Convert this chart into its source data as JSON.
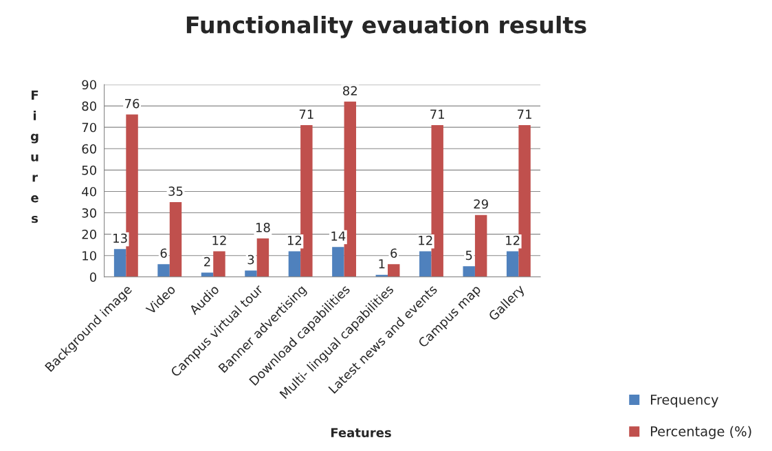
{
  "chart_data": {
    "type": "bar",
    "title": "Functionality evauation results",
    "xlabel": "Features",
    "ylabel": "Figures",
    "categories": [
      "Background image",
      "Video",
      "Audio",
      "Campus virtual tour",
      "Banner advertising",
      "Download capabilities",
      "Multi- lingual capabilities",
      "Latest news and events",
      "Campus map",
      "Gallery"
    ],
    "series": [
      {
        "name": "Frequency",
        "color": "#4f81bd",
        "values": [
          13,
          6,
          2,
          3,
          12,
          14,
          1,
          12,
          5,
          12
        ]
      },
      {
        "name": "Percentage (%)",
        "color": "#c0504d",
        "values": [
          76,
          35,
          12,
          18,
          71,
          82,
          6,
          71,
          29,
          71
        ]
      }
    ],
    "ylim": [
      0,
      90
    ],
    "yticks": [
      0,
      10,
      20,
      30,
      40,
      50,
      60,
      70,
      80,
      90
    ],
    "grid": "y",
    "legend": "bottom right",
    "data_labels": true
  }
}
